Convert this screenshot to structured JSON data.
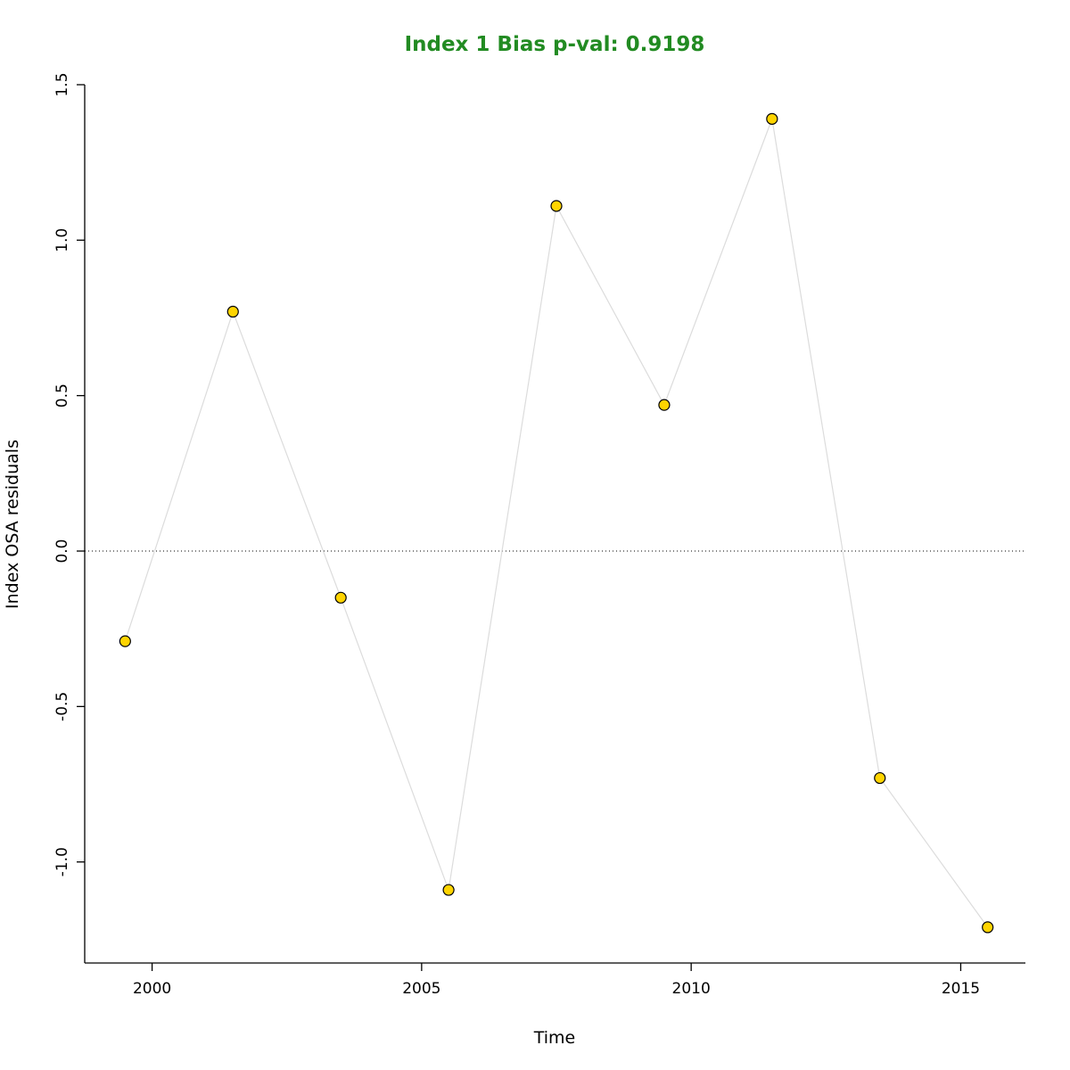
{
  "chart_data": {
    "type": "line",
    "title": "Index 1 Bias p-val: 0.9198",
    "xlabel": "Time",
    "ylabel": "Index OSA residuals",
    "x": [
      1999.5,
      2001.5,
      2003.5,
      2005.5,
      2007.5,
      2009.5,
      2011.5,
      2013.5,
      2015.5
    ],
    "y": [
      -0.29,
      0.77,
      -0.15,
      -1.09,
      1.11,
      0.47,
      1.39,
      -0.73,
      -1.21
    ],
    "xlim": [
      1998.75,
      2016.2
    ],
    "ylim": [
      -1.325,
      1.5
    ],
    "xticks": [
      2000,
      2005,
      2010,
      2015
    ],
    "xtick_labels": [
      "2000",
      "2005",
      "2010",
      "2015"
    ],
    "yticks": [
      -1.0,
      -0.5,
      0.0,
      0.5,
      1.0,
      1.5
    ],
    "ytick_labels": [
      "-1.0",
      "-0.5",
      "0.0",
      "0.5",
      "1.0",
      "1.5"
    ],
    "zero_line": 0,
    "grid": false,
    "legend": null,
    "point_radius": 6,
    "colors": {
      "title": "#228B22",
      "point_fill": "#FFD400",
      "point_stroke": "#000000",
      "line": "#DCDCDC",
      "axis": "#000000",
      "zero_line": "#000000"
    }
  }
}
